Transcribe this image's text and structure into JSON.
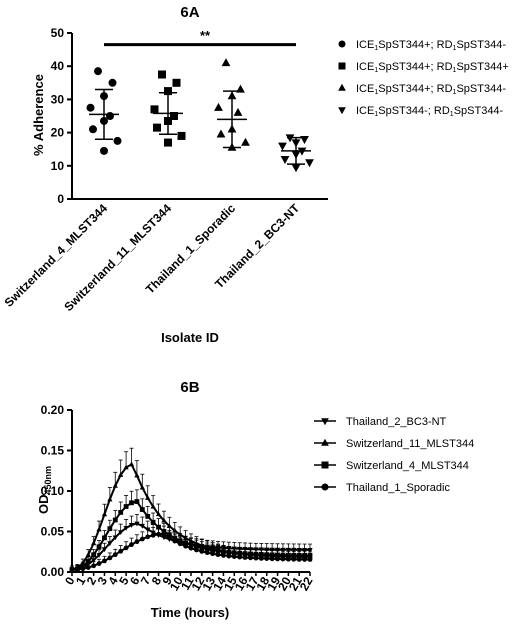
{
  "chart_data": [
    {
      "type": "scatter",
      "title": "6A",
      "xlabel": "Isolate ID",
      "ylabel": "% Adherence",
      "ylim": [
        0,
        50
      ],
      "yticks": [
        "0",
        "10",
        "20",
        "30",
        "40",
        "50"
      ],
      "categories": [
        "Switzerland_4_MLST344",
        "Switzerland_11_MLST344",
        "Thailand_1_Sporadic",
        "Thailand_2_BC3-NT"
      ],
      "significance": {
        "label": "**",
        "from": 0,
        "to": 3,
        "y": 46.5
      },
      "legend": {
        "placement": "right",
        "entries": [
          {
            "marker": "circle",
            "pre": "ICE",
            "sub1": "1",
            "mid": "SpST344+; RD",
            "sub2": "1",
            "post": "SpST344-"
          },
          {
            "marker": "square",
            "pre": "ICE",
            "sub1": "1",
            "mid": "SpST344+; RD",
            "sub2": "1",
            "post": "SpST344+"
          },
          {
            "marker": "triangle-up",
            "pre": "ICE",
            "sub1": "1",
            "mid": "SpST344+; RD",
            "sub2": "1",
            "post": "SpST344-"
          },
          {
            "marker": "triangle-down",
            "pre": "ICE",
            "sub1": "1",
            "mid": "SpST344-; RD",
            "sub2": "1",
            "post": "SpST344-"
          }
        ]
      },
      "series": [
        {
          "marker": "circle",
          "mean": 25.5,
          "sd_low": 18,
          "sd_high": 33,
          "points": [
            38.5,
            35,
            31,
            27.5,
            25,
            23.5,
            21,
            17.5,
            14.5
          ]
        },
        {
          "marker": "square",
          "mean": 25.8,
          "sd_low": 19.5,
          "sd_high": 32,
          "points": [
            37.5,
            35,
            32.5,
            27,
            25,
            23.5,
            21.5,
            19,
            17
          ]
        },
        {
          "marker": "triangle-up",
          "mean": 24,
          "sd_low": 15.5,
          "sd_high": 32.5,
          "points": [
            41,
            33,
            31,
            27.5,
            26,
            21,
            19.5,
            17,
            15.5
          ]
        },
        {
          "marker": "triangle-down",
          "mean": 14.5,
          "sd_low": 10.5,
          "sd_high": 18.5,
          "points": [
            18.5,
            18,
            17,
            16,
            14.5,
            13.5,
            12,
            11,
            9.5
          ]
        }
      ]
    },
    {
      "type": "line",
      "title": "6B",
      "xlabel": "Time (hours)",
      "ylabel_main": "OD",
      "ylabel_sub": "450nm",
      "ylim": [
        0,
        0.2
      ],
      "yticks": [
        "0.00",
        "0.05",
        "0.10",
        "0.15",
        "0.20"
      ],
      "x": [
        0,
        0.5,
        1,
        1.5,
        2,
        2.5,
        3,
        3.5,
        4,
        4.5,
        5,
        5.5,
        6,
        6.5,
        7,
        7.5,
        8,
        8.5,
        9,
        9.5,
        10,
        10.5,
        11,
        11.5,
        12,
        12.5,
        13,
        13.5,
        14,
        14.5,
        15,
        15.5,
        16,
        16.5,
        17,
        17.5,
        18,
        18.5,
        19,
        19.5,
        20,
        20.5,
        21,
        21.5,
        22
      ],
      "xticks": [
        "0",
        "1",
        "2",
        "3",
        "4",
        "5",
        "6",
        "7",
        "8",
        "9",
        "10",
        "11",
        "12",
        "13",
        "14",
        "15",
        "16",
        "17",
        "18",
        "19",
        "20",
        "21",
        "22"
      ],
      "series": [
        {
          "name": "Thailand_2_BC3-NT",
          "marker": "triangle-down",
          "peak": 0.06,
          "peak_t": 6.2,
          "end": 0.027
        },
        {
          "name": "Switzerland_11_MLST344",
          "marker": "triangle-up",
          "peak": 0.133,
          "peak_t": 5.6,
          "end": 0.018
        },
        {
          "name": "Switzerland_4_MLST344",
          "marker": "square",
          "peak": 0.087,
          "peak_t": 6.0,
          "end": 0.02
        },
        {
          "name": "Thailand_1_Sporadic",
          "marker": "circle",
          "peak": 0.047,
          "peak_t": 8.5,
          "end": 0.015
        }
      ]
    }
  ]
}
